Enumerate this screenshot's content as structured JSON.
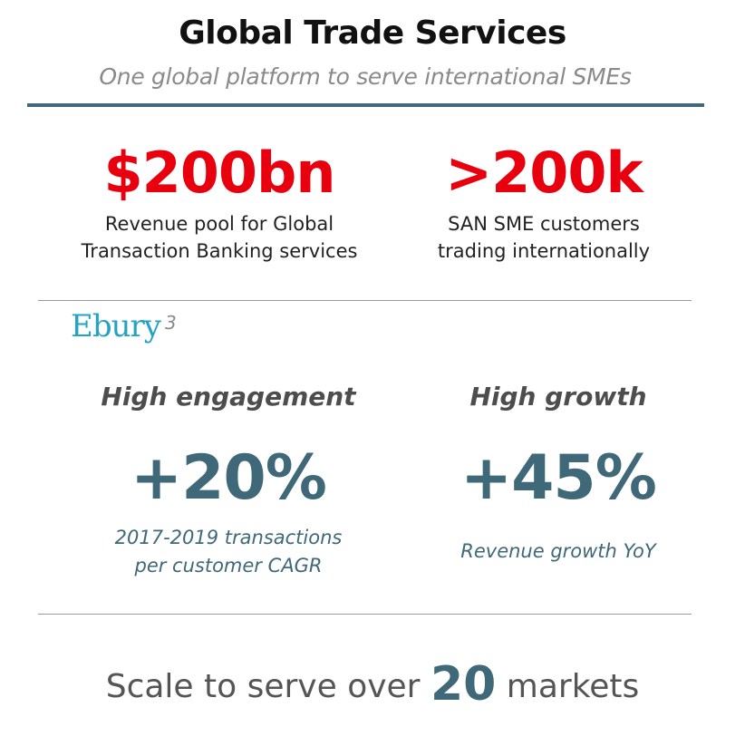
{
  "header": {
    "title": "Global Trade Services",
    "subtitle": "One global platform to serve international SMEs"
  },
  "stats": [
    {
      "value": "$200bn",
      "line1": "Revenue pool for Global",
      "line2": "Transaction Banking services"
    },
    {
      "value": ">200k",
      "line1": "SAN SME customers",
      "line2": "trading internationally"
    }
  ],
  "ebury": {
    "logo_text": "Ebury",
    "footnote": "3",
    "left": {
      "heading": "High engagement",
      "value": "+20%",
      "desc_line1": "2017-2019 transactions",
      "desc_line2": "per customer CAGR"
    },
    "right": {
      "heading": "High growth",
      "value": "+45%",
      "desc_line1": "Revenue growth YoY"
    }
  },
  "footer": {
    "prefix": "Scale to serve over",
    "number": "20",
    "suffix": "markets"
  },
  "colors": {
    "accent_red": "#e8000f",
    "accent_teal": "#3f6878",
    "ebury_blue": "#22a3c4"
  }
}
